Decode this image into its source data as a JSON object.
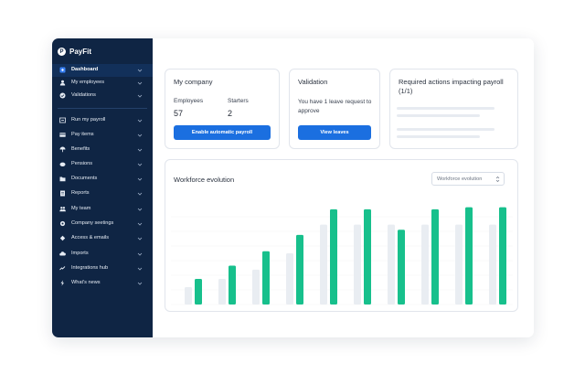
{
  "brand": {
    "name": "PayFit",
    "logo_letter": "P"
  },
  "sidebar": {
    "items": [
      {
        "label": "Dashboard",
        "icon": "grid-icon",
        "active": true
      },
      {
        "label": "My employees",
        "icon": "user-icon",
        "active": false
      },
      {
        "label": "Validations",
        "icon": "check-circle-icon",
        "active": false
      },
      {
        "label": "Run my payroll",
        "icon": "payroll-icon",
        "active": false
      },
      {
        "label": "Pay items",
        "icon": "card-icon",
        "active": false
      },
      {
        "label": "Benefits",
        "icon": "umbrella-icon",
        "active": false
      },
      {
        "label": "Pensions",
        "icon": "piggy-icon",
        "active": false
      },
      {
        "label": "Documents",
        "icon": "folder-icon",
        "active": false
      },
      {
        "label": "Reports",
        "icon": "report-icon",
        "active": false
      },
      {
        "label": "My team",
        "icon": "team-icon",
        "active": false
      },
      {
        "label": "Company seetings",
        "icon": "gear-icon",
        "active": false
      },
      {
        "label": "Access & emails",
        "icon": "key-icon",
        "active": false
      },
      {
        "label": "Imports",
        "icon": "cloud-icon",
        "active": false
      },
      {
        "label": "Integrations hub",
        "icon": "plug-icon",
        "active": false
      },
      {
        "label": "What's news",
        "icon": "bolt-icon",
        "active": false
      }
    ]
  },
  "company_card": {
    "title": "My company",
    "employees_label": "Employees",
    "employees_value": "57",
    "starters_label": "Starters",
    "starters_value": "2",
    "button_label": "Enable automatic payroll"
  },
  "validation_card": {
    "title": "Validation",
    "text": "You have 1 leave request to approve",
    "button_label": "View leaves"
  },
  "actions_card": {
    "title": "Required actions impacting payroll (1/1)"
  },
  "workforce": {
    "title": "Workforce evolution",
    "select_value": "Workforce evolution"
  },
  "colors": {
    "sidebar": "#0f2544",
    "accent": "#1b6fe0",
    "bar_green": "#17c08c",
    "bar_grey": "#e9edf2"
  },
  "chart_data": {
    "type": "bar",
    "series": [
      {
        "values": [
          0.17,
          0.25,
          0.34,
          0.5,
          0.78,
          0.78,
          0.78,
          0.78,
          0.78,
          0.78
        ]
      },
      {
        "values": [
          0.25,
          0.38,
          0.52,
          0.68,
          0.93,
          0.93,
          0.73,
          0.93,
          0.95,
          0.95
        ]
      }
    ]
  }
}
